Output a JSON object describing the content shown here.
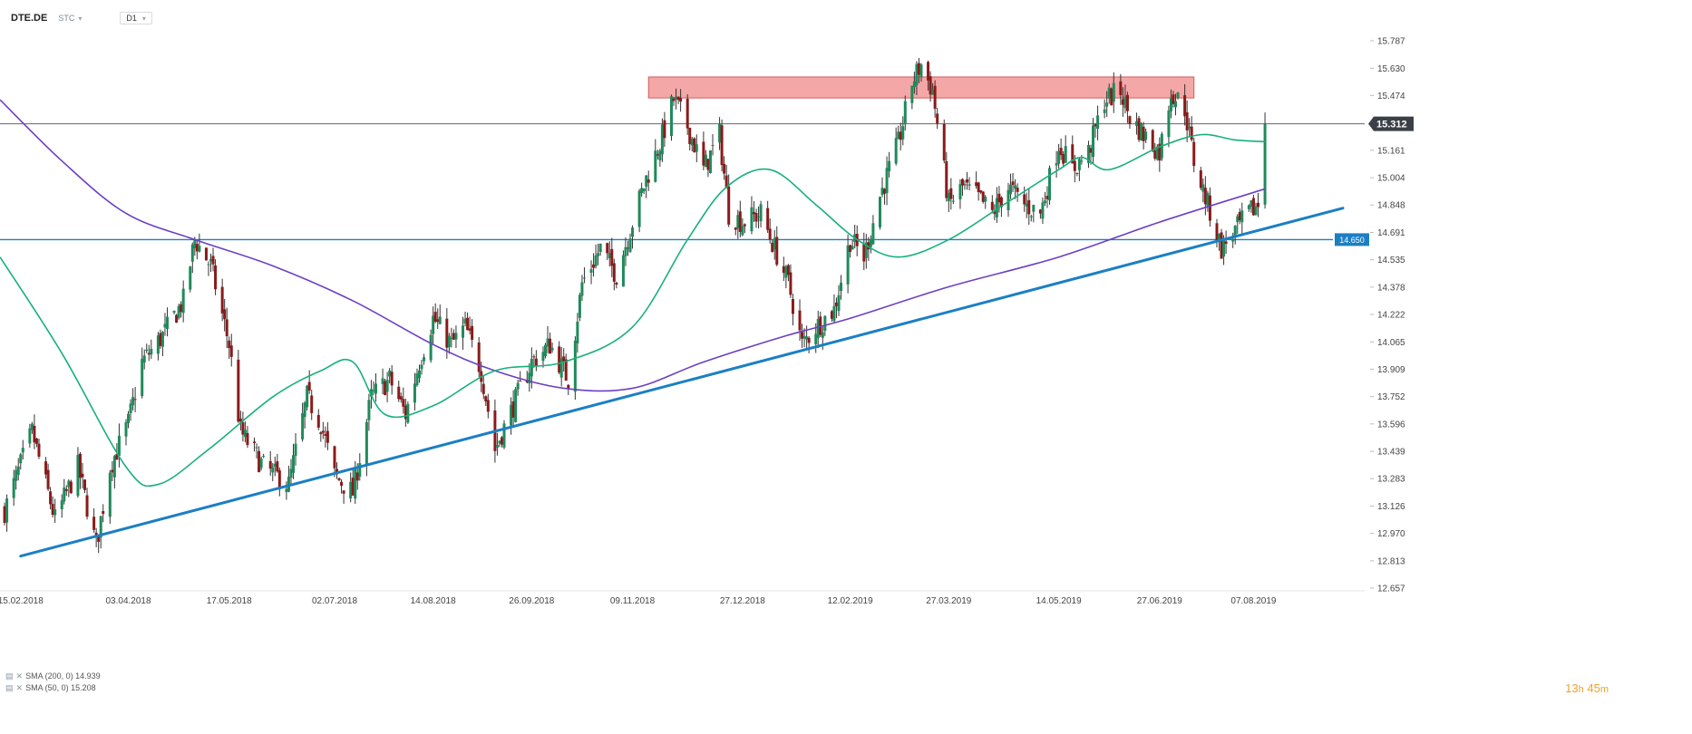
{
  "header": {
    "symbol": "DTE.DE",
    "price_type": "STC",
    "timeframe": "D1"
  },
  "price_tag": {
    "value": "15.312",
    "price": 15.312
  },
  "support_tag": {
    "value": "14.650",
    "price": 14.65
  },
  "legend": [
    {
      "text": "SMA (200, 0) 14.939"
    },
    {
      "text": "SMA (50, 0) 15.208"
    }
  ],
  "timer": {
    "hours": "13",
    "h_unit": "h",
    "minutes": "45",
    "m_unit": "m"
  },
  "colors": {
    "up_candle": "#1f8a5b",
    "down_candle": "#8b1a1a",
    "sma50": "#17b07a",
    "sma200": "#6c3fc4",
    "trendline": "#1b7fc4",
    "support_line": "#1b7fc4",
    "current_price_line": "#666666",
    "resistance_zone": "#f08a8a",
    "price_tag_bg": "#3b4048"
  },
  "chart_data": {
    "type": "candlestick",
    "y_ticks": [
      "15.787",
      "15.630",
      "15.474",
      "15.318",
      "15.161",
      "15.004",
      "14.848",
      "14.691",
      "14.535",
      "14.378",
      "14.222",
      "14.065",
      "13.909",
      "13.752",
      "13.596",
      "13.439",
      "13.283",
      "13.126",
      "12.970",
      "12.813",
      "12.657"
    ],
    "y_range": [
      12.657,
      15.787
    ],
    "x_labels": [
      "15.02.2018",
      "03.04.2018",
      "17.05.2018",
      "02.07.2018",
      "14.08.2018",
      "26.09.2018",
      "09.11.2018",
      "27.12.2018",
      "12.02.2019",
      "27.03.2019",
      "14.05.2019",
      "27.06.2019",
      "07.08.2019"
    ],
    "x_label_dates": [
      "2018-02-15",
      "2018-04-03",
      "2018-05-17",
      "2018-07-02",
      "2018-08-14",
      "2018-09-26",
      "2018-11-09",
      "2018-12-27",
      "2019-02-12",
      "2019-03-27",
      "2019-05-14",
      "2019-06-27",
      "2019-08-07"
    ],
    "date_range": [
      "2018-02-06",
      "2019-09-15"
    ],
    "close_anchors": [
      [
        "2018-02-08",
        13.1
      ],
      [
        "2018-02-20",
        13.55
      ],
      [
        "2018-03-02",
        13.05
      ],
      [
        "2018-03-12",
        13.35
      ],
      [
        "2018-03-20",
        12.9
      ],
      [
        "2018-03-26",
        13.35
      ],
      [
        "2018-04-03",
        13.6
      ],
      [
        "2018-04-09",
        13.95
      ],
      [
        "2018-04-18",
        14.1
      ],
      [
        "2018-04-27",
        14.3
      ],
      [
        "2018-05-02",
        14.65
      ],
      [
        "2018-05-09",
        14.5
      ],
      [
        "2018-05-17",
        14.05
      ],
      [
        "2018-05-22",
        13.55
      ],
      [
        "2018-06-01",
        13.35
      ],
      [
        "2018-06-12",
        13.25
      ],
      [
        "2018-06-20",
        13.75
      ],
      [
        "2018-06-26",
        13.6
      ],
      [
        "2018-07-02",
        13.3
      ],
      [
        "2018-07-10",
        13.2
      ],
      [
        "2018-07-18",
        13.75
      ],
      [
        "2018-07-26",
        13.85
      ],
      [
        "2018-08-02",
        13.65
      ],
      [
        "2018-08-08",
        13.95
      ],
      [
        "2018-08-14",
        14.2
      ],
      [
        "2018-08-22",
        14.05
      ],
      [
        "2018-08-28",
        14.15
      ],
      [
        "2018-09-04",
        13.9
      ],
      [
        "2018-09-10",
        13.45
      ],
      [
        "2018-09-18",
        13.7
      ],
      [
        "2018-09-26",
        13.95
      ],
      [
        "2018-10-04",
        14.05
      ],
      [
        "2018-10-12",
        13.85
      ],
      [
        "2018-10-18",
        14.4
      ],
      [
        "2018-10-26",
        14.6
      ],
      [
        "2018-11-02",
        14.45
      ],
      [
        "2018-11-09",
        14.75
      ],
      [
        "2018-11-15",
        15.0
      ],
      [
        "2018-11-21",
        15.2
      ],
      [
        "2018-11-27",
        15.45
      ],
      [
        "2018-12-03",
        15.3
      ],
      [
        "2018-12-10",
        15.05
      ],
      [
        "2018-12-17",
        15.25
      ],
      [
        "2018-12-21",
        14.8
      ],
      [
        "2018-12-27",
        14.75
      ],
      [
        "2019-01-04",
        14.8
      ],
      [
        "2019-01-10",
        14.6
      ],
      [
        "2019-01-16",
        14.4
      ],
      [
        "2019-01-22",
        14.05
      ],
      [
        "2019-01-28",
        14.15
      ],
      [
        "2019-02-05",
        14.25
      ],
      [
        "2019-02-12",
        14.65
      ],
      [
        "2019-02-18",
        14.55
      ],
      [
        "2019-02-25",
        14.9
      ],
      [
        "2019-03-05",
        15.2
      ],
      [
        "2019-03-11",
        15.55
      ],
      [
        "2019-03-15",
        15.65
      ],
      [
        "2019-03-20",
        15.5
      ],
      [
        "2019-03-27",
        14.85
      ],
      [
        "2019-04-02",
        14.95
      ],
      [
        "2019-04-08",
        14.9
      ],
      [
        "2019-04-15",
        14.8
      ],
      [
        "2019-04-22",
        14.95
      ],
      [
        "2019-04-29",
        14.85
      ],
      [
        "2019-05-06",
        14.8
      ],
      [
        "2019-05-14",
        15.2
      ],
      [
        "2019-05-20",
        15.05
      ],
      [
        "2019-05-27",
        15.15
      ],
      [
        "2019-06-03",
        15.45
      ],
      [
        "2019-06-10",
        15.5
      ],
      [
        "2019-06-14",
        15.35
      ],
      [
        "2019-06-20",
        15.25
      ],
      [
        "2019-06-27",
        15.15
      ],
      [
        "2019-07-02",
        15.5
      ],
      [
        "2019-07-08",
        15.4
      ],
      [
        "2019-07-12",
        15.1
      ],
      [
        "2019-07-18",
        14.85
      ],
      [
        "2019-07-24",
        14.6
      ],
      [
        "2019-07-30",
        14.7
      ],
      [
        "2019-08-05",
        14.8
      ],
      [
        "2019-08-09",
        14.85
      ],
      [
        "2019-08-12",
        15.31
      ]
    ],
    "sma50": [
      [
        "2018-02-06",
        14.55
      ],
      [
        "2018-03-05",
        14.0
      ],
      [
        "2018-04-02",
        13.35
      ],
      [
        "2018-04-16",
        13.25
      ],
      [
        "2018-05-08",
        13.45
      ],
      [
        "2018-06-05",
        13.75
      ],
      [
        "2018-06-26",
        13.9
      ],
      [
        "2018-07-10",
        13.95
      ],
      [
        "2018-07-24",
        13.65
      ],
      [
        "2018-08-14",
        13.7
      ],
      [
        "2018-09-10",
        13.9
      ],
      [
        "2018-10-10",
        13.95
      ],
      [
        "2018-11-09",
        14.15
      ],
      [
        "2018-12-03",
        14.65
      ],
      [
        "2018-12-20",
        14.95
      ],
      [
        "2019-01-08",
        15.05
      ],
      [
        "2019-01-28",
        14.85
      ],
      [
        "2019-02-15",
        14.65
      ],
      [
        "2019-03-05",
        14.55
      ],
      [
        "2019-03-27",
        14.65
      ],
      [
        "2019-04-20",
        14.85
      ],
      [
        "2019-05-14",
        15.05
      ],
      [
        "2019-05-24",
        15.12
      ],
      [
        "2019-06-05",
        15.05
      ],
      [
        "2019-06-27",
        15.18
      ],
      [
        "2019-07-15",
        15.25
      ],
      [
        "2019-07-30",
        15.22
      ],
      [
        "2019-08-12",
        15.21
      ]
    ],
    "sma200": [
      [
        "2018-02-06",
        15.45
      ],
      [
        "2018-03-05",
        15.1
      ],
      [
        "2018-04-02",
        14.8
      ],
      [
        "2018-05-02",
        14.65
      ],
      [
        "2018-06-05",
        14.5
      ],
      [
        "2018-07-10",
        14.3
      ],
      [
        "2018-08-14",
        14.05
      ],
      [
        "2018-09-10",
        13.9
      ],
      [
        "2018-10-10",
        13.8
      ],
      [
        "2018-11-09",
        13.8
      ],
      [
        "2018-12-10",
        13.95
      ],
      [
        "2019-01-15",
        14.1
      ],
      [
        "2019-02-12",
        14.2
      ],
      [
        "2019-03-27",
        14.38
      ],
      [
        "2019-05-14",
        14.55
      ],
      [
        "2019-06-27",
        14.75
      ],
      [
        "2019-08-12",
        14.94
      ]
    ],
    "trendline": [
      [
        "2018-02-15",
        12.84
      ],
      [
        "2019-09-15",
        14.83
      ]
    ],
    "support_level": 14.65,
    "current_price": 15.312,
    "resistance_zone": {
      "from": "2018-11-16",
      "to": "2019-07-12",
      "low": 15.46,
      "high": 15.58
    },
    "grid": false,
    "legend_position": "bottom-left"
  }
}
